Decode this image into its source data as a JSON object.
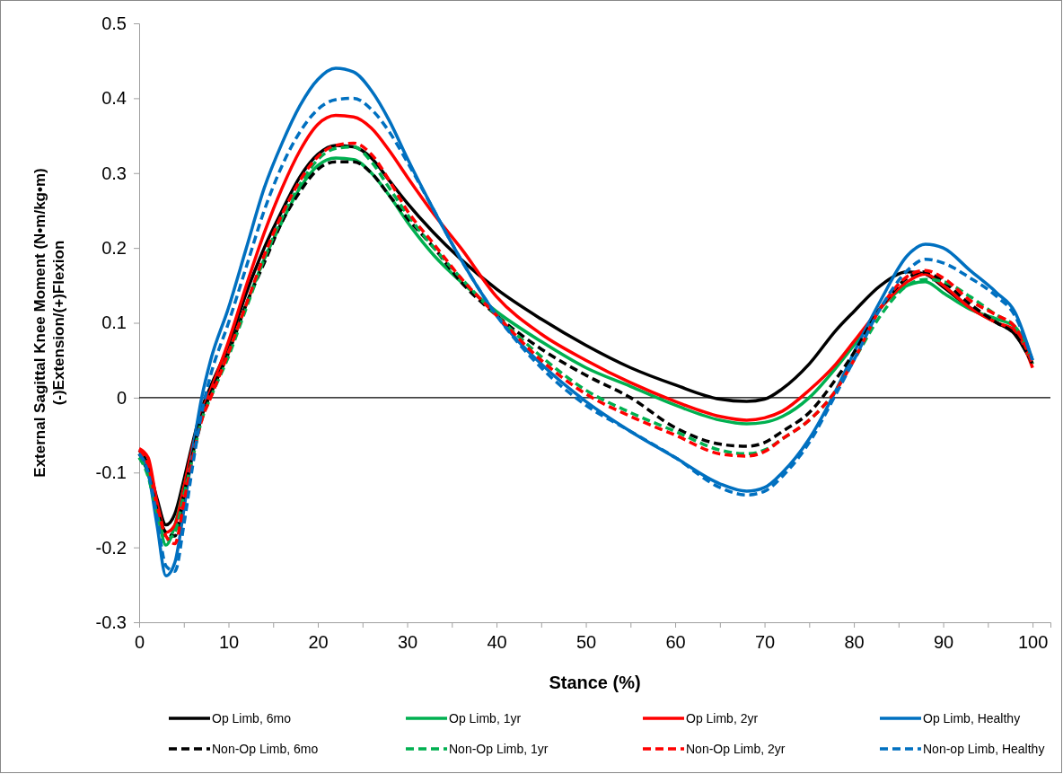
{
  "chart_data": {
    "type": "line",
    "xlabel": "Stance (%)",
    "ylabel": "External Sagittal Knee Moment (N•m/kg•m)\n(-)Extension/(+)Flexion",
    "x": [
      0,
      1,
      2,
      3,
      4,
      5,
      6,
      7,
      8,
      10,
      12,
      14,
      16,
      18,
      20,
      22,
      24,
      26,
      28,
      30,
      33,
      36,
      40,
      45,
      50,
      55,
      60,
      65,
      68,
      70,
      72,
      75,
      78,
      80,
      83,
      86,
      88,
      90,
      93,
      96,
      98,
      100
    ],
    "xlim": [
      0,
      102
    ],
    "xticks": [
      0,
      {
        "value": 5,
        "label": null
      },
      10,
      {
        "value": 15,
        "label": null
      },
      20,
      {
        "value": 25,
        "label": null
      },
      30,
      {
        "value": 35,
        "label": null
      },
      40,
      {
        "value": 45,
        "label": null
      },
      50,
      {
        "value": 55,
        "label": null
      },
      60,
      {
        "value": 65,
        "label": null
      },
      70,
      {
        "value": 75,
        "label": null
      },
      80,
      {
        "value": 85,
        "label": null
      },
      90,
      {
        "value": 95,
        "label": null
      },
      100
    ],
    "ylim": [
      -0.3,
      0.5
    ],
    "yticks": [
      -0.3,
      -0.2,
      -0.1,
      0,
      0.1,
      0.2,
      0.3,
      0.4,
      0.5
    ],
    "grid": false,
    "legend": "bottom",
    "ref_lines": [
      {
        "axis": "y",
        "value": 0,
        "color": "#000000"
      }
    ],
    "series": [
      {
        "name": "Op Limb, 6mo",
        "color": "#000000",
        "line_style": "solid",
        "values": [
          -0.07,
          -0.09,
          -0.135,
          -0.17,
          -0.155,
          -0.11,
          -0.06,
          -0.015,
          0.015,
          0.07,
          0.14,
          0.2,
          0.25,
          0.295,
          0.325,
          0.337,
          0.335,
          0.32,
          0.29,
          0.26,
          0.22,
          0.185,
          0.145,
          0.105,
          0.07,
          0.04,
          0.017,
          -0.002,
          -0.005,
          -0.002,
          0.012,
          0.045,
          0.09,
          0.115,
          0.15,
          0.168,
          0.165,
          0.148,
          0.12,
          0.1,
          0.085,
          0.045
        ]
      },
      {
        "name": "Op Limb, 1yr",
        "color": "#00b050",
        "line_style": "solid",
        "values": [
          -0.08,
          -0.1,
          -0.15,
          -0.197,
          -0.17,
          -0.12,
          -0.07,
          -0.025,
          0.005,
          0.06,
          0.125,
          0.185,
          0.235,
          0.28,
          0.31,
          0.32,
          0.318,
          0.3,
          0.27,
          0.235,
          0.19,
          0.155,
          0.115,
          0.075,
          0.04,
          0.015,
          -0.01,
          -0.03,
          -0.035,
          -0.033,
          -0.025,
          0.0,
          0.04,
          0.07,
          0.12,
          0.15,
          0.155,
          0.14,
          0.118,
          0.105,
          0.095,
          0.045
        ]
      },
      {
        "name": "Op Limb, 2yr",
        "color": "#ff0000",
        "line_style": "solid",
        "values": [
          -0.068,
          -0.08,
          -0.14,
          -0.18,
          -0.17,
          -0.12,
          -0.065,
          -0.02,
          0.01,
          0.075,
          0.15,
          0.22,
          0.28,
          0.33,
          0.365,
          0.377,
          0.375,
          0.36,
          0.33,
          0.295,
          0.245,
          0.2,
          0.135,
          0.085,
          0.05,
          0.02,
          -0.005,
          -0.025,
          -0.03,
          -0.027,
          -0.018,
          0.01,
          0.045,
          0.075,
          0.12,
          0.155,
          0.165,
          0.15,
          0.12,
          0.1,
          0.09,
          0.04
        ]
      },
      {
        "name": "Op Limb, Healthy",
        "color": "#0070c0",
        "line_style": "solid",
        "values": [
          -0.075,
          -0.1,
          -0.17,
          -0.238,
          -0.22,
          -0.15,
          -0.07,
          0.0,
          0.05,
          0.12,
          0.2,
          0.28,
          0.34,
          0.39,
          0.425,
          0.44,
          0.435,
          0.41,
          0.37,
          0.32,
          0.25,
          0.185,
          0.11,
          0.045,
          -0.005,
          -0.045,
          -0.08,
          -0.115,
          -0.125,
          -0.12,
          -0.1,
          -0.055,
          0.01,
          0.06,
          0.13,
          0.19,
          0.205,
          0.2,
          0.17,
          0.14,
          0.115,
          0.05
        ]
      },
      {
        "name": "Non-Op Limb, 6mo",
        "color": "#000000",
        "line_style": "dashed",
        "values": [
          -0.075,
          -0.1,
          -0.15,
          -0.18,
          -0.185,
          -0.13,
          -0.075,
          -0.025,
          0.005,
          0.06,
          0.125,
          0.18,
          0.235,
          0.275,
          0.305,
          0.315,
          0.315,
          0.3,
          0.27,
          0.24,
          0.2,
          0.155,
          0.11,
          0.065,
          0.03,
          0.0,
          -0.04,
          -0.062,
          -0.065,
          -0.06,
          -0.045,
          -0.02,
          0.025,
          0.06,
          0.12,
          0.16,
          0.168,
          0.155,
          0.125,
          0.1,
          0.085,
          0.045
        ]
      },
      {
        "name": "Non-Op Limb, 1yr",
        "color": "#00b050",
        "line_style": "dashed",
        "values": [
          -0.08,
          -0.105,
          -0.155,
          -0.19,
          -0.18,
          -0.13,
          -0.08,
          -0.03,
          0.0,
          0.055,
          0.12,
          0.185,
          0.24,
          0.285,
          0.318,
          0.333,
          0.335,
          0.315,
          0.28,
          0.245,
          0.2,
          0.16,
          0.11,
          0.055,
          0.01,
          -0.02,
          -0.045,
          -0.07,
          -0.075,
          -0.07,
          -0.055,
          -0.03,
          0.01,
          0.05,
          0.11,
          0.15,
          0.158,
          0.155,
          0.135,
          0.11,
          0.095,
          0.045
        ]
      },
      {
        "name": "Non-Op Limb, 2yr",
        "color": "#ff0000",
        "line_style": "dashed",
        "values": [
          -0.07,
          -0.09,
          -0.145,
          -0.185,
          -0.195,
          -0.14,
          -0.08,
          -0.03,
          0.0,
          0.06,
          0.125,
          0.19,
          0.245,
          0.29,
          0.322,
          0.337,
          0.34,
          0.325,
          0.29,
          0.25,
          0.205,
          0.16,
          0.11,
          0.05,
          0.005,
          -0.025,
          -0.05,
          -0.075,
          -0.078,
          -0.072,
          -0.055,
          -0.03,
          0.01,
          0.05,
          0.12,
          0.162,
          0.17,
          0.16,
          0.13,
          0.11,
          0.095,
          0.045
        ]
      },
      {
        "name": "Non-op Limb, Healthy",
        "color": "#0070c0",
        "line_style": "dashed",
        "values": [
          -0.075,
          -0.1,
          -0.16,
          -0.225,
          -0.232,
          -0.17,
          -0.09,
          -0.02,
          0.03,
          0.1,
          0.175,
          0.25,
          0.31,
          0.355,
          0.385,
          0.398,
          0.4,
          0.385,
          0.355,
          0.315,
          0.25,
          0.185,
          0.11,
          0.04,
          -0.01,
          -0.045,
          -0.08,
          -0.12,
          -0.13,
          -0.125,
          -0.105,
          -0.06,
          0.005,
          0.05,
          0.12,
          0.17,
          0.185,
          0.18,
          0.16,
          0.135,
          0.11,
          0.05
        ]
      }
    ]
  }
}
